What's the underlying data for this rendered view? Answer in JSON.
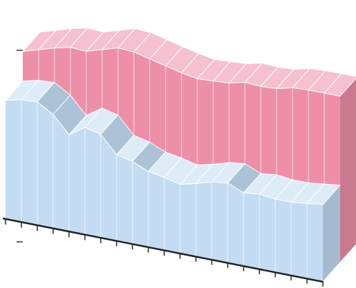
{
  "chart_data": {
    "type": "area3d",
    "categories": [
      null,
      null,
      null,
      null,
      null,
      null,
      null,
      null,
      null,
      null,
      null,
      null,
      null,
      null,
      null,
      null,
      null,
      null,
      null,
      null,
      null
    ],
    "series": [
      {
        "color": "#c3dcf3",
        "values": [
          1.24,
          1.28,
          1.29,
          1.19,
          1.01,
          1.12,
          1.08,
          0.9,
          0.86,
          0.79,
          0.76,
          0.72,
          0.76,
          0.81,
          0.83,
          0.76,
          0.78,
          0.76,
          0.76,
          0.78,
          0.8
        ]
      },
      {
        "color": "#ee8fa8",
        "values": [
          1.55,
          1.6,
          1.65,
          1.69,
          1.68,
          1.73,
          1.78,
          1.77,
          1.73,
          1.69,
          1.65,
          1.62,
          1.63,
          1.64,
          1.68,
          1.67,
          1.68,
          1.72,
          1.73,
          1.73,
          1.73
        ]
      }
    ],
    "ylim": [
      0,
      2
    ],
    "yticks": [
      0,
      1,
      2
    ]
  }
}
